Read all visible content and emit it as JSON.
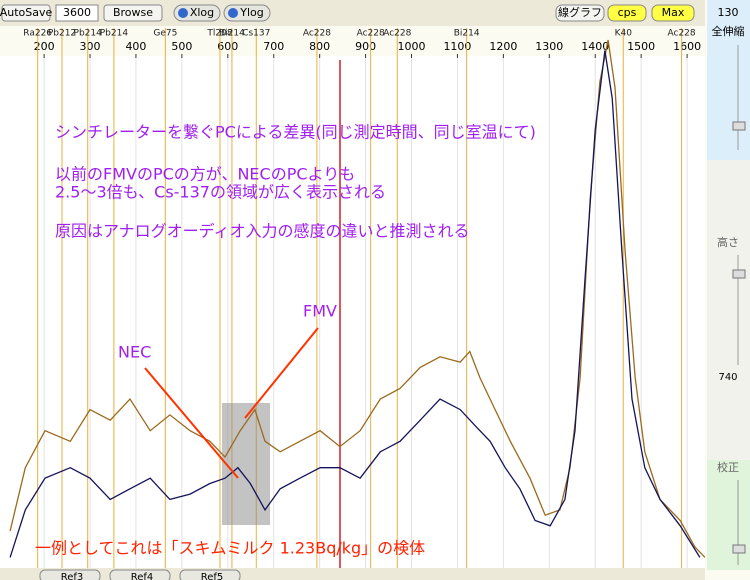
{
  "toolbar": {
    "autosave": "AutoSave",
    "time": "3600",
    "browse": "Browse",
    "xlog": "Xlog",
    "ylog": "Ylog",
    "graph": "線グラフ",
    "cps": "cps",
    "max": "Max",
    "value": "130"
  },
  "side_panel": {
    "zoom": "全伸縮",
    "height": "高さ",
    "height_value": "740",
    "calib": "校正"
  },
  "tabs": [
    "Ref3",
    "Ref4",
    "Ref5"
  ],
  "chart_data": {
    "type": "line",
    "xlim": [
      104,
      1639
    ],
    "xticks": [
      200,
      300,
      400,
      500,
      600,
      700,
      800,
      900,
      1000,
      1100,
      1200,
      1300,
      1400,
      1500,
      1600
    ],
    "ylim": [
      0,
      100
    ],
    "peaks": [
      {
        "label": "Ra226",
        "energy": 186
      },
      {
        "label": "Pb212",
        "energy": 239
      },
      {
        "label": "Pb214",
        "energy": 295
      },
      {
        "label": "Pb214",
        "energy": 352
      },
      {
        "label": "Ge75",
        "energy": 464
      },
      {
        "label": "Tl208",
        "energy": 583
      },
      {
        "label": "Bi214",
        "energy": 609
      },
      {
        "label": "Cs137",
        "energy": 662
      },
      {
        "label": "Ac228",
        "energy": 794
      },
      {
        "label": "Ac228",
        "energy": 911
      },
      {
        "label": "Ac228",
        "energy": 969
      },
      {
        "label": "Bi214",
        "energy": 1120
      },
      {
        "label": "K40",
        "energy": 1461
      },
      {
        "label": "Ac228",
        "energy": 1588
      }
    ],
    "series": [
      {
        "color": "#9a6a1e",
        "x": [
          126,
          159,
          202,
          257,
          300,
          344,
          387,
          431,
          474,
          518,
          561,
          594,
          627,
          659,
          681,
          714,
          757,
          801,
          844,
          888,
          932,
          975,
          1019,
          1062,
          1106,
          1127,
          1149,
          1182,
          1215,
          1258,
          1291,
          1323,
          1345,
          1367,
          1389,
          1410,
          1428,
          1443,
          1465,
          1487,
          1508,
          1541,
          1585,
          1617,
          1639
        ],
        "values": [
          7,
          19,
          26,
          24,
          30,
          28,
          32,
          26,
          29,
          26,
          24,
          21,
          26,
          30,
          24,
          22,
          24,
          26,
          23,
          26,
          32,
          34,
          38,
          40,
          39,
          41,
          36,
          30,
          24,
          17,
          10,
          11,
          19,
          36,
          70,
          92,
          100,
          91,
          60,
          36,
          22,
          13,
          9,
          4,
          2
        ]
      },
      {
        "color": "#14145a",
        "x": [
          126,
          159,
          202,
          257,
          300,
          344,
          387,
          431,
          474,
          518,
          561,
          594,
          622,
          649,
          681,
          714,
          757,
          801,
          844,
          888,
          932,
          975,
          1019,
          1062,
          1106,
          1138,
          1171,
          1204,
          1236,
          1269,
          1302,
          1334,
          1356,
          1378,
          1400,
          1421,
          1437,
          1458,
          1480,
          1508,
          1541,
          1585,
          1628
        ],
        "values": [
          2,
          11,
          17,
          19,
          17,
          13,
          15,
          17,
          13,
          14,
          16,
          17,
          19,
          16,
          11,
          15,
          17,
          19,
          19,
          17,
          22,
          24,
          28,
          32,
          30,
          27,
          24,
          19,
          15,
          9,
          8,
          13,
          26,
          55,
          83,
          98,
          89,
          60,
          32,
          19,
          13,
          8,
          2
        ]
      }
    ],
    "annotations": {
      "lines": [
        "シンチレーターを繋ぐPCによる差異(同じ測定時間、同じ室温にて)",
        "以前のFMVのPCの方が、NECのPCよりも",
        "2.5～3倍も、Cs-137の領域が広く表示される",
        "原因はアナログオーディオ入力の感度の違いと推測される"
      ],
      "nec": "NEC",
      "fmv": "FMV",
      "sample": "一例としてこれは「スキムミルク 1.23Bq/kg」の検体"
    }
  }
}
